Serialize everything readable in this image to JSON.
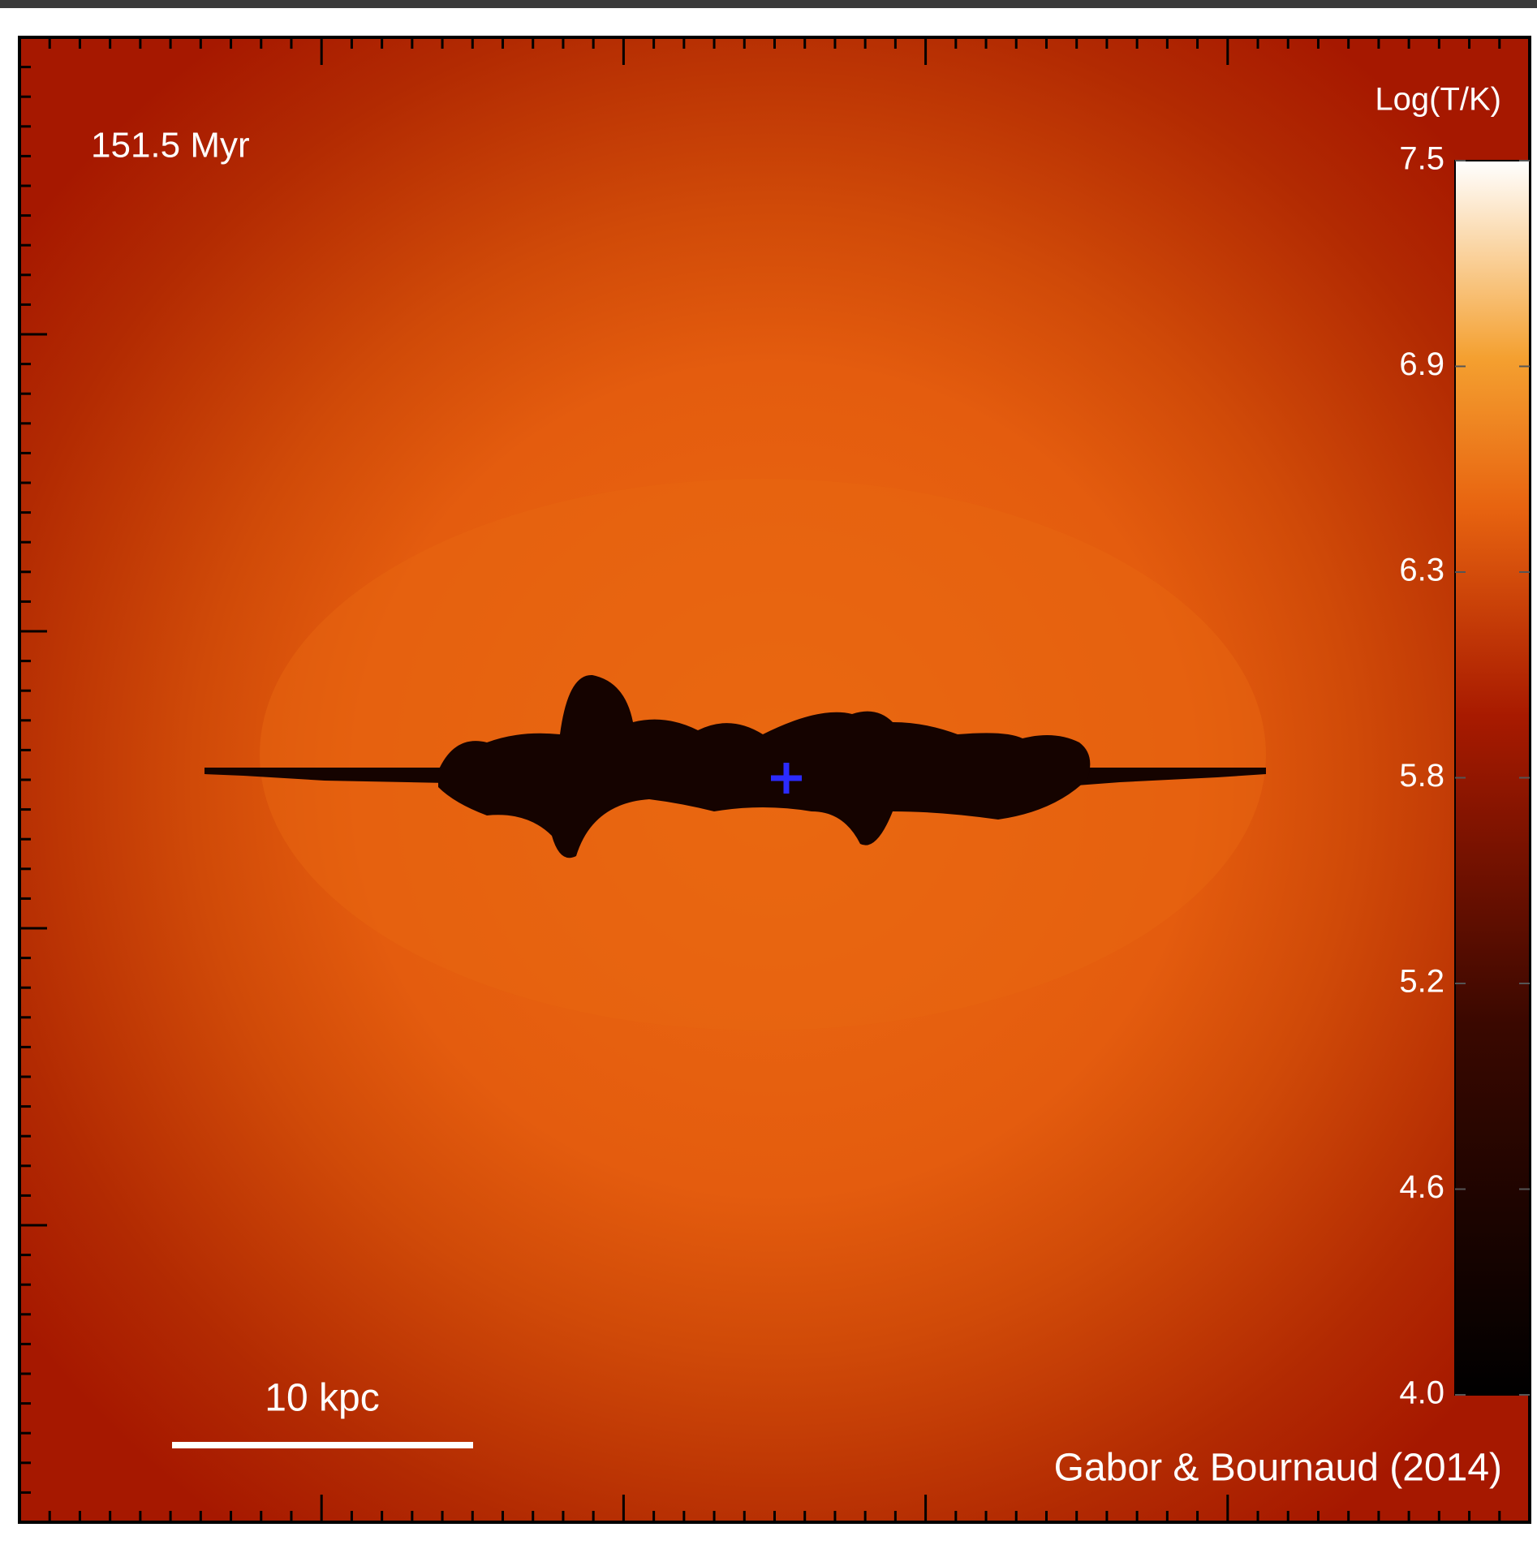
{
  "time_label": "151.5 Myr",
  "scale_bar_label": "10 kpc",
  "credit": "Gabor & Bournaud (2014)",
  "colorbar": {
    "title": "Log(T/K)",
    "lim": [
      4.0,
      7.5
    ],
    "ticks": [
      {
        "value": 4.0,
        "label": "4.0"
      },
      {
        "value": 4.5833,
        "label": "4.6"
      },
      {
        "value": 5.1667,
        "label": "5.2"
      },
      {
        "value": 5.75,
        "label": "5.8"
      },
      {
        "value": 6.3333,
        "label": "6.3"
      },
      {
        "value": 6.9167,
        "label": "6.9"
      },
      7.5
    ]
  }
}
